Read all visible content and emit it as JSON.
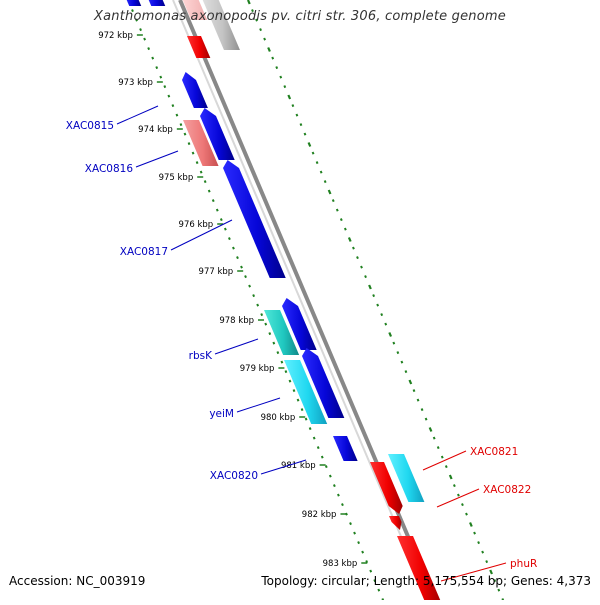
{
  "title": "Xanthomonas axonopodis pv. citri str. 306, complete genome",
  "accession_text": "Accession: NC_003919",
  "summary_text": "Topology: circular; Length: 5,175,554 bp; Genes: 4,373",
  "colors": {
    "forward_gene": "#1010e0",
    "reverse_gene": "#f01010",
    "pseudo_gene": "#f07878",
    "rna_gene": "#20c8c8",
    "light_blue_gene": "#30d8f0",
    "grey_gene": "#c0c0c0",
    "backbone": "#808080",
    "tick_dots": "#208020",
    "label_blue": "#0000c0",
    "label_red": "#e00000"
  },
  "scale_ticks": [
    {
      "label": "972 kbp"
    },
    {
      "label": "973 kbp"
    },
    {
      "label": "974 kbp"
    },
    {
      "label": "975 kbp"
    },
    {
      "label": "976 kbp"
    },
    {
      "label": "977 kbp"
    },
    {
      "label": "978 kbp"
    },
    {
      "label": "979 kbp"
    },
    {
      "label": "980 kbp"
    },
    {
      "label": "981 kbp"
    },
    {
      "label": "982 kbp"
    },
    {
      "label": "983 kbp"
    }
  ],
  "gene_labels": [
    {
      "name": "XAC0815",
      "strand": "forward"
    },
    {
      "name": "XAC0816",
      "strand": "forward"
    },
    {
      "name": "XAC0817",
      "strand": "forward"
    },
    {
      "name": "rbsK",
      "strand": "forward"
    },
    {
      "name": "yeiM",
      "strand": "forward"
    },
    {
      "name": "XAC0820",
      "strand": "forward"
    },
    {
      "name": "XAC0821",
      "strand": "reverse"
    },
    {
      "name": "XAC0822",
      "strand": "reverse"
    },
    {
      "name": "phuR",
      "strand": "reverse"
    }
  ]
}
